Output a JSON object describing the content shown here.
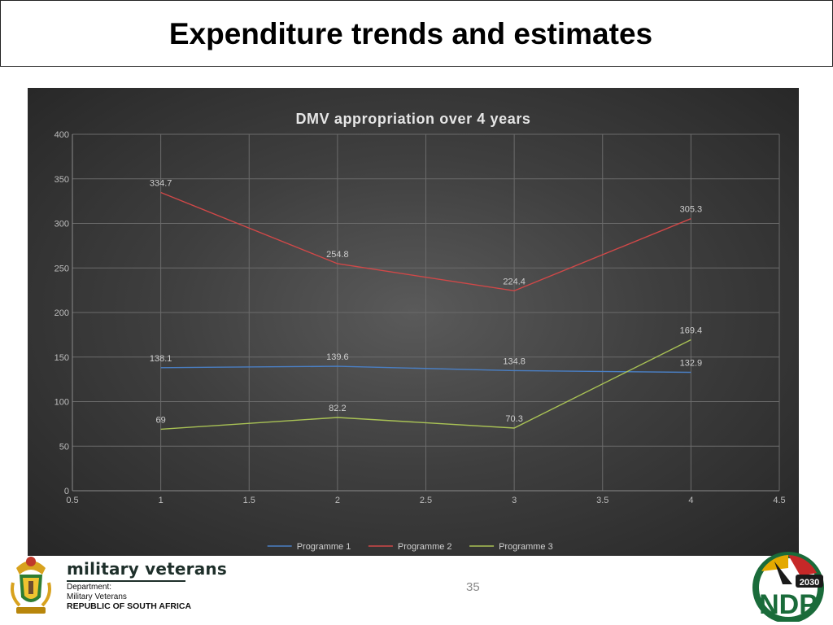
{
  "slide": {
    "heading": "Expenditure trends and estimates",
    "page_number": "35"
  },
  "branding": {
    "name": "military veterans",
    "line1": "Department:",
    "line2": "Military Veterans",
    "line3": "REPUBLIC OF SOUTH AFRICA",
    "ndp_text": "NDP",
    "ndp_year": "2030"
  },
  "chart_data": {
    "type": "line",
    "title": "DMV appropriation over 4 years",
    "xlim": [
      0.5,
      4.5
    ],
    "ylim": [
      0,
      400
    ],
    "x_ticks": [
      0.5,
      1,
      1.5,
      2,
      2.5,
      3,
      3.5,
      4,
      4.5
    ],
    "y_ticks": [
      0,
      50,
      100,
      150,
      200,
      250,
      300,
      350,
      400
    ],
    "grid": true,
    "legend_position": "bottom",
    "series": [
      {
        "name": "Programme 1",
        "color": "#4a7fc4",
        "x": [
          1,
          2,
          3,
          4
        ],
        "values": [
          138.1,
          139.6,
          134.8,
          132.9
        ]
      },
      {
        "name": "Programme 2",
        "color": "#d04848",
        "x": [
          1,
          2,
          3,
          4
        ],
        "values": [
          334.7,
          254.8,
          224.4,
          305.3
        ]
      },
      {
        "name": "Programme 3",
        "color": "#a9c255",
        "x": [
          1,
          2,
          3,
          4
        ],
        "values": [
          69,
          82.2,
          70.3,
          169.4
        ]
      }
    ]
  }
}
